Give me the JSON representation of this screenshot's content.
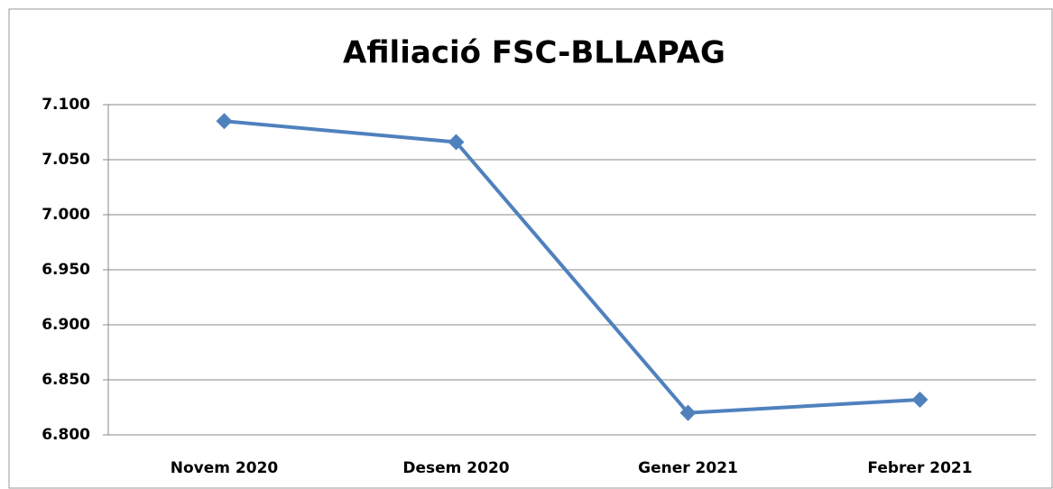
{
  "chart_data": {
    "type": "line",
    "title": "Afiliació FSC-BLLAPAG",
    "categories": [
      "Novem 2020",
      "Desem 2020",
      "Gener 2021",
      "Febrer 2021"
    ],
    "series": [
      {
        "name": "Afiliació",
        "color": "#4f81bd",
        "values": [
          7085,
          7066,
          6820,
          6832
        ]
      }
    ],
    "ylim": [
      6800,
      7100
    ],
    "yticks": [
      {
        "value": 6800,
        "label": "6.800"
      },
      {
        "value": 6850,
        "label": "6.850"
      },
      {
        "value": 6900,
        "label": "6.900"
      },
      {
        "value": 6950,
        "label": "6.950"
      },
      {
        "value": 7000,
        "label": "7.000"
      },
      {
        "value": 7050,
        "label": "7.050"
      },
      {
        "value": 7100,
        "label": "7.100"
      }
    ],
    "grid": true
  }
}
